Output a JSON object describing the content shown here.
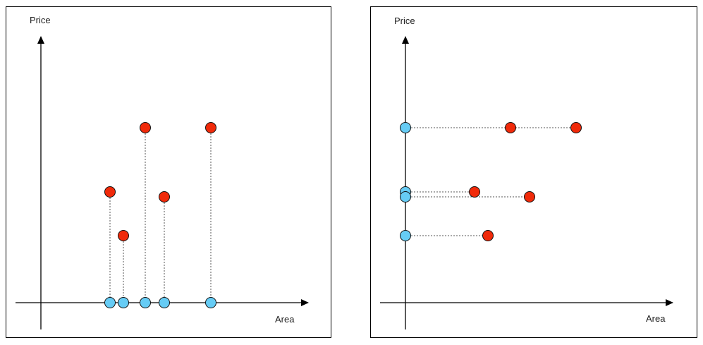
{
  "left_panel": {
    "y_axis_label": "Price",
    "x_axis_label": "Area"
  },
  "right_panel": {
    "y_axis_label": "Price",
    "x_axis_label": "Area"
  },
  "colors": {
    "data_point": "#f02a0a",
    "projection_point": "#66ccf5",
    "outline": "#111111",
    "projection_line": "#555555"
  }
}
